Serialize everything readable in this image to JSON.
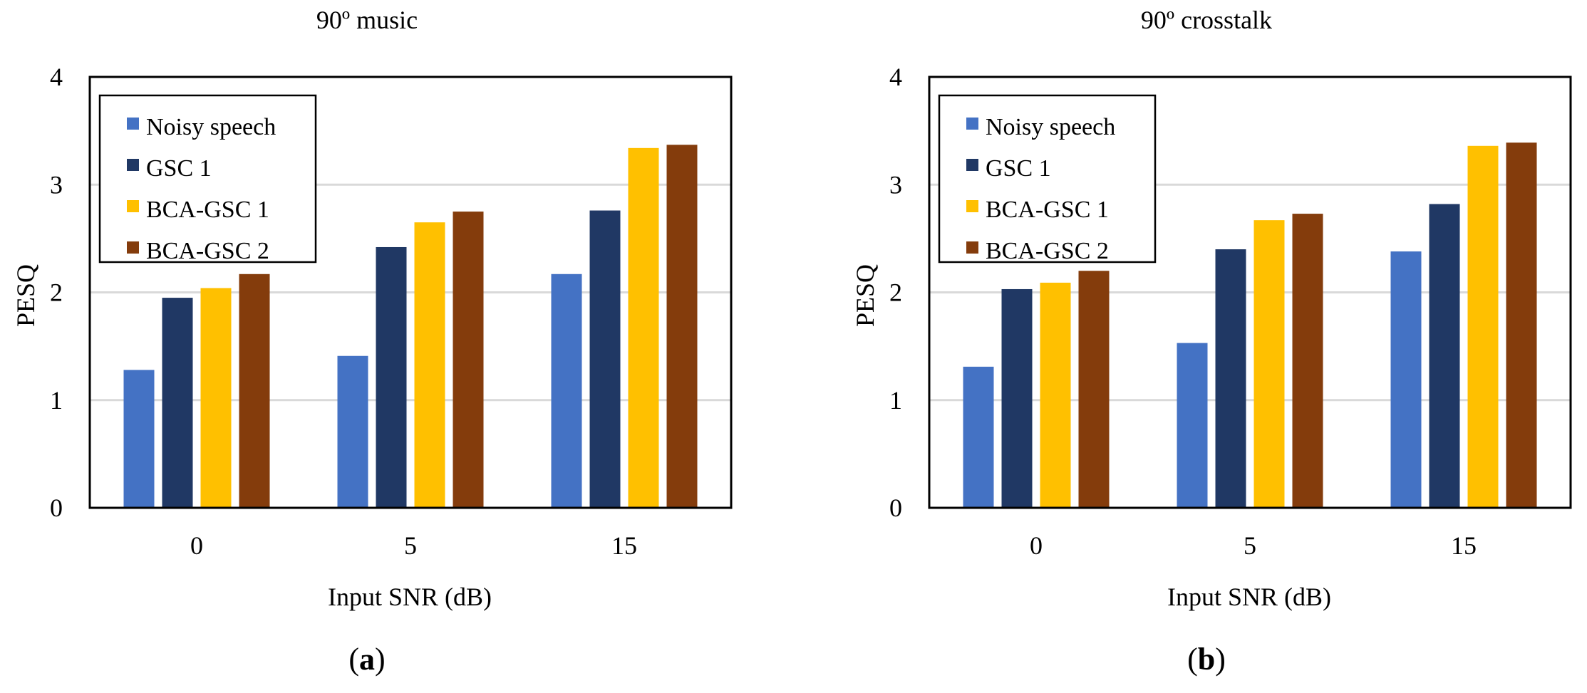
{
  "colors": {
    "Noisy speech": "#4472C4",
    "GSC 1": "#203864",
    "BCA-GSC 1": "#FFC000",
    "BCA-GSC 2": "#843C0C",
    "grid": "#D9D9D9"
  },
  "chart_data": [
    {
      "type": "bar",
      "title": "90º music",
      "xlabel": "Input SNR (dB)",
      "ylabel": "PESQ",
      "ylim": [
        0,
        4
      ],
      "yticks": [
        "0",
        "1",
        "2",
        "3",
        "4"
      ],
      "categories": [
        "0",
        "5",
        "15"
      ],
      "legend_position": "top-left",
      "grid": true,
      "series": [
        {
          "name": "Noisy speech",
          "values": [
            1.28,
            1.41,
            2.17
          ]
        },
        {
          "name": "GSC 1",
          "values": [
            1.95,
            2.42,
            2.76
          ]
        },
        {
          "name": "BCA-GSC 1",
          "values": [
            2.04,
            2.65,
            3.34
          ]
        },
        {
          "name": "BCA-GSC 2",
          "values": [
            2.17,
            2.75,
            3.37
          ]
        }
      ],
      "panel_label": {
        "open": "(",
        "letter": "a",
        "close": ")"
      }
    },
    {
      "type": "bar",
      "title": "90º crosstalk",
      "xlabel": "Input SNR (dB)",
      "ylabel": "PESQ",
      "ylim": [
        0,
        4
      ],
      "yticks": [
        "0",
        "1",
        "2",
        "3",
        "4"
      ],
      "categories": [
        "0",
        "5",
        "15"
      ],
      "legend_position": "top-left",
      "grid": true,
      "series": [
        {
          "name": "Noisy speech",
          "values": [
            1.31,
            1.53,
            2.38
          ]
        },
        {
          "name": "GSC 1",
          "values": [
            2.03,
            2.4,
            2.82
          ]
        },
        {
          "name": "BCA-GSC 1",
          "values": [
            2.09,
            2.67,
            3.36
          ]
        },
        {
          "name": "BCA-GSC 2",
          "values": [
            2.2,
            2.73,
            3.39
          ]
        }
      ],
      "panel_label": {
        "open": "(",
        "letter": "b",
        "close": ")"
      }
    }
  ]
}
